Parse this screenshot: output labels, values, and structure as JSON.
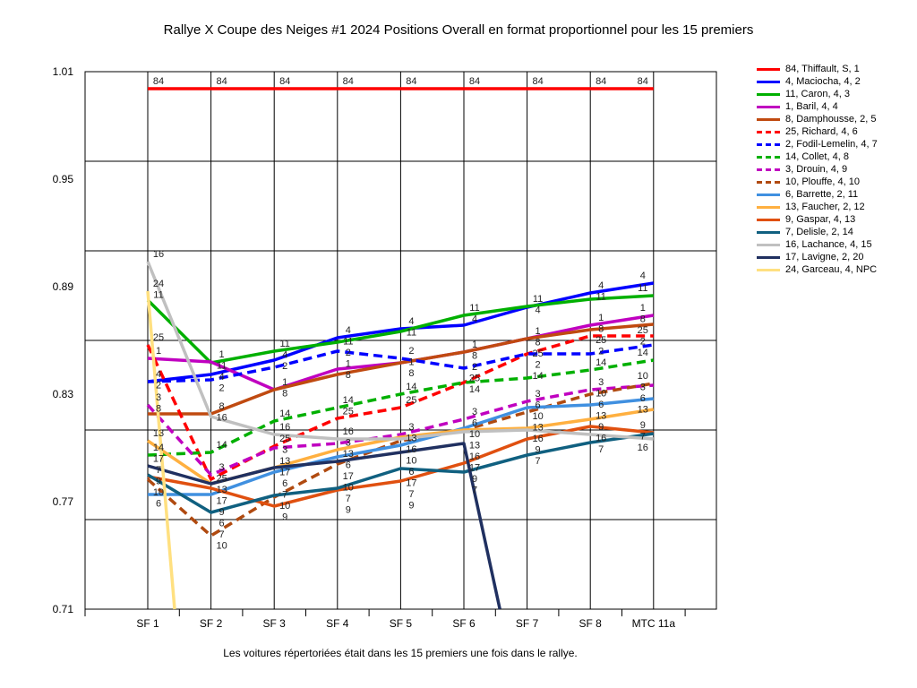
{
  "chart_data": {
    "type": "line",
    "title": "Rallye X Coupe des Neiges #1 2024  Positions Overall en format proportionnel pour les 15 premiers",
    "footnote": "Les voitures répertoriées était dans les 15 premiers une fois dans le rallye.",
    "xlabel": "",
    "ylabel": "",
    "categories": [
      "SF 1",
      "SF 2",
      "SF 3",
      "SF 4",
      "SF 5",
      "SF 6",
      "SF 7",
      "SF 8",
      "MTC 11a"
    ],
    "ylim": [
      0.71,
      1.01
    ],
    "yticks": [
      "1.01",
      "0.95",
      "0.89",
      "0.83",
      "0.77",
      "0.71"
    ],
    "grid": true,
    "legend_position": "right",
    "series": [
      {
        "name": "84, Thiffault, S, 1",
        "label": "84",
        "color": "#ff0000",
        "dash": false,
        "values": [
          1.0005,
          1.0005,
          1.0005,
          1.0005,
          1.0005,
          1.0005,
          1.0005,
          1.0005,
          1.0005
        ]
      },
      {
        "name": "4, Maciocha, 4, 2",
        "label": "4",
        "color": "#0000ff",
        "dash": false,
        "values": [
          0.837,
          0.841,
          0.849,
          0.8615,
          0.8665,
          0.8685,
          0.8785,
          0.8865,
          0.892
        ]
      },
      {
        "name": "11, Caron, 4, 3",
        "label": "11",
        "color": "#00b000",
        "dash": false,
        "values": [
          0.8825,
          0.8475,
          0.854,
          0.859,
          0.865,
          0.874,
          0.879,
          0.883,
          0.885
        ]
      },
      {
        "name": "1, Baril, 4, 4",
        "label": "1",
        "color": "#c000c0",
        "dash": false,
        "values": [
          0.85,
          0.848,
          0.8325,
          0.844,
          0.8475,
          0.8535,
          0.861,
          0.8685,
          0.874
        ]
      },
      {
        "name": "8, Damphousse, 2, 5",
        "label": "8",
        "color": "#c04a10",
        "dash": false,
        "values": [
          0.819,
          0.819,
          0.8325,
          0.841,
          0.8475,
          0.8535,
          0.861,
          0.866,
          0.869
        ]
      },
      {
        "name": "25, Richard, 4, 6",
        "label": "25",
        "color": "#ff0000",
        "dash": true,
        "values": [
          0.8575,
          0.7825,
          0.801,
          0.8165,
          0.8225,
          0.8365,
          0.8525,
          0.8625,
          0.8625
        ]
      },
      {
        "name": "2, Fodil-Lemelin, 4, 7",
        "label": "2",
        "color": "#0000ff",
        "dash": true,
        "values": [
          0.837,
          0.838,
          0.845,
          0.854,
          0.85,
          0.8445,
          0.8525,
          0.8525,
          0.8575
        ]
      },
      {
        "name": "14, Collet, 4, 8",
        "label": "14",
        "color": "#00b000",
        "dash": true,
        "values": [
          0.796,
          0.7975,
          0.815,
          0.8225,
          0.83,
          0.8365,
          0.839,
          0.8435,
          0.849
        ]
      },
      {
        "name": "3, Drouin, 4, 9",
        "label": "3",
        "color": "#c000c0",
        "dash": true,
        "values": [
          0.824,
          0.785,
          0.8,
          0.8025,
          0.8075,
          0.816,
          0.826,
          0.8325,
          0.835
        ]
      },
      {
        "name": "10, Plouffe, 4, 10",
        "label": "10",
        "color": "#b04a10",
        "dash": true,
        "values": [
          0.7825,
          0.751,
          0.7725,
          0.791,
          0.804,
          0.81,
          0.82,
          0.83,
          0.836
        ]
      },
      {
        "name": "6, Barrette, 2, 11",
        "label": "6",
        "color": "#4090e0",
        "dash": false,
        "values": [
          0.774,
          0.774,
          0.7865,
          0.795,
          0.8015,
          0.811,
          0.8225,
          0.824,
          0.8275
        ]
      },
      {
        "name": "13, Faucher, 2, 12",
        "label": "13",
        "color": "#ffb040",
        "dash": false,
        "values": [
          0.804,
          0.78,
          0.789,
          0.799,
          0.806,
          0.81,
          0.811,
          0.816,
          0.8215
        ]
      },
      {
        "name": "9, Gaspar, 4, 13",
        "label": "9",
        "color": "#e05010",
        "dash": false,
        "values": [
          0.784,
          0.7775,
          0.7675,
          0.7765,
          0.7815,
          0.7915,
          0.805,
          0.812,
          0.8085
        ]
      },
      {
        "name": "7, Delisle, 2, 14",
        "label": "7",
        "color": "#106080",
        "dash": false,
        "values": [
          0.785,
          0.764,
          0.7735,
          0.7775,
          0.7885,
          0.7865,
          0.796,
          0.803,
          0.808
        ]
      },
      {
        "name": "16, Lachance, 4, 15",
        "label": "16",
        "color": "#c0c0c0",
        "dash": false,
        "values": [
          0.904,
          0.8175,
          0.8075,
          0.805,
          0.805,
          0.809,
          0.81,
          0.8075,
          0.805
        ]
      },
      {
        "name": "17, Lavigne, 2, 20",
        "label": "17",
        "color": "#203060",
        "dash": false,
        "values": [
          0.79,
          0.78,
          0.789,
          0.7925,
          0.7975,
          0.8025,
          0.64,
          null,
          null
        ]
      },
      {
        "name": "24, Garceau, 4,  NPC",
        "label": "24",
        "color": "#ffe080",
        "dash": false,
        "values": [
          0.8875,
          0.47,
          null,
          null,
          null,
          null,
          null,
          null,
          null
        ]
      }
    ]
  }
}
